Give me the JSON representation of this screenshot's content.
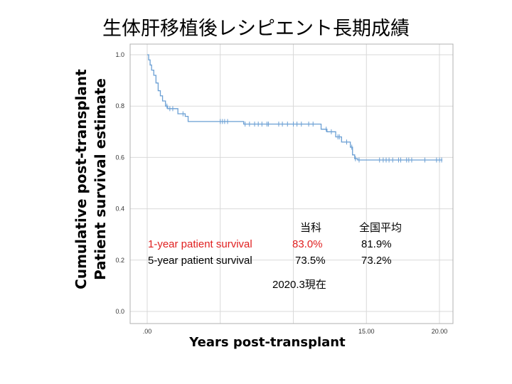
{
  "slide": {
    "title": "生体肝移植後レシピエント長期成績"
  },
  "chart_data": {
    "type": "line",
    "subtype": "kaplan-meier step",
    "xlabel": "Years post-transplant",
    "ylabel_line1": "Cumulative post-transplant",
    "ylabel_line2": "Patient survival estimate",
    "xlim": [
      -0.6,
      20.7
    ],
    "ylim": [
      0,
      1.0
    ],
    "x_ticks": [
      {
        "v": 0,
        "label": ".00"
      },
      {
        "v": 15,
        "label": "15.00"
      },
      {
        "v": 20,
        "label": "20.00"
      }
    ],
    "y_ticks": [
      {
        "v": 0.0,
        "label": "0.0"
      },
      {
        "v": 0.2,
        "label": "0.2"
      },
      {
        "v": 0.4,
        "label": "0.4"
      },
      {
        "v": 0.6,
        "label": "0.6"
      },
      {
        "v": 0.8,
        "label": "0.8"
      },
      {
        "v": 1.0,
        "label": "1.0"
      }
    ],
    "x_gridlines": [
      0,
      5,
      10,
      15,
      20
    ],
    "grid": true,
    "line_color": "#6a9fd4",
    "series": [
      {
        "steps": [
          [
            0,
            1.0
          ],
          [
            0.1,
            0.98
          ],
          [
            0.2,
            0.96
          ],
          [
            0.3,
            0.94
          ],
          [
            0.45,
            0.92
          ],
          [
            0.6,
            0.89
          ],
          [
            0.75,
            0.86
          ],
          [
            0.9,
            0.84
          ],
          [
            1.05,
            0.82
          ],
          [
            1.25,
            0.8
          ],
          [
            1.4,
            0.79
          ],
          [
            2.1,
            0.77
          ],
          [
            2.6,
            0.76
          ],
          [
            2.8,
            0.74
          ],
          [
            6.6,
            0.73
          ],
          [
            11.9,
            0.71
          ],
          [
            12.3,
            0.7
          ],
          [
            12.9,
            0.68
          ],
          [
            13.3,
            0.66
          ],
          [
            13.9,
            0.64
          ],
          [
            14.05,
            0.61
          ],
          [
            14.2,
            0.595
          ],
          [
            14.4,
            0.59
          ]
        ],
        "x_end": 20.2,
        "censored": [
          1.35,
          1.55,
          1.75,
          2.45,
          5.0,
          5.15,
          5.3,
          5.5,
          6.7,
          7.0,
          7.35,
          7.6,
          7.85,
          8.2,
          8.3,
          9.0,
          9.25,
          9.6,
          10.0,
          10.25,
          10.55,
          11.05,
          11.35,
          12.25,
          12.6,
          13.05,
          13.15,
          13.65,
          14.0,
          14.25,
          14.5,
          15.9,
          16.15,
          16.35,
          16.55,
          16.8,
          17.2,
          17.35,
          17.75,
          17.9,
          18.1,
          19.0,
          19.8,
          20.0,
          20.15
        ]
      }
    ]
  },
  "stats_table": {
    "col_header_center": "当科",
    "col_header_national": "全国平均",
    "rows": [
      {
        "label": "1-year patient survival",
        "center": "83.0%",
        "national": "81.9%",
        "color": "#e02020"
      },
      {
        "label": "5-year patient survival",
        "center": "73.5%",
        "national": "73.2%",
        "color": "#000000"
      }
    ],
    "as_of": "2020.3現在"
  }
}
